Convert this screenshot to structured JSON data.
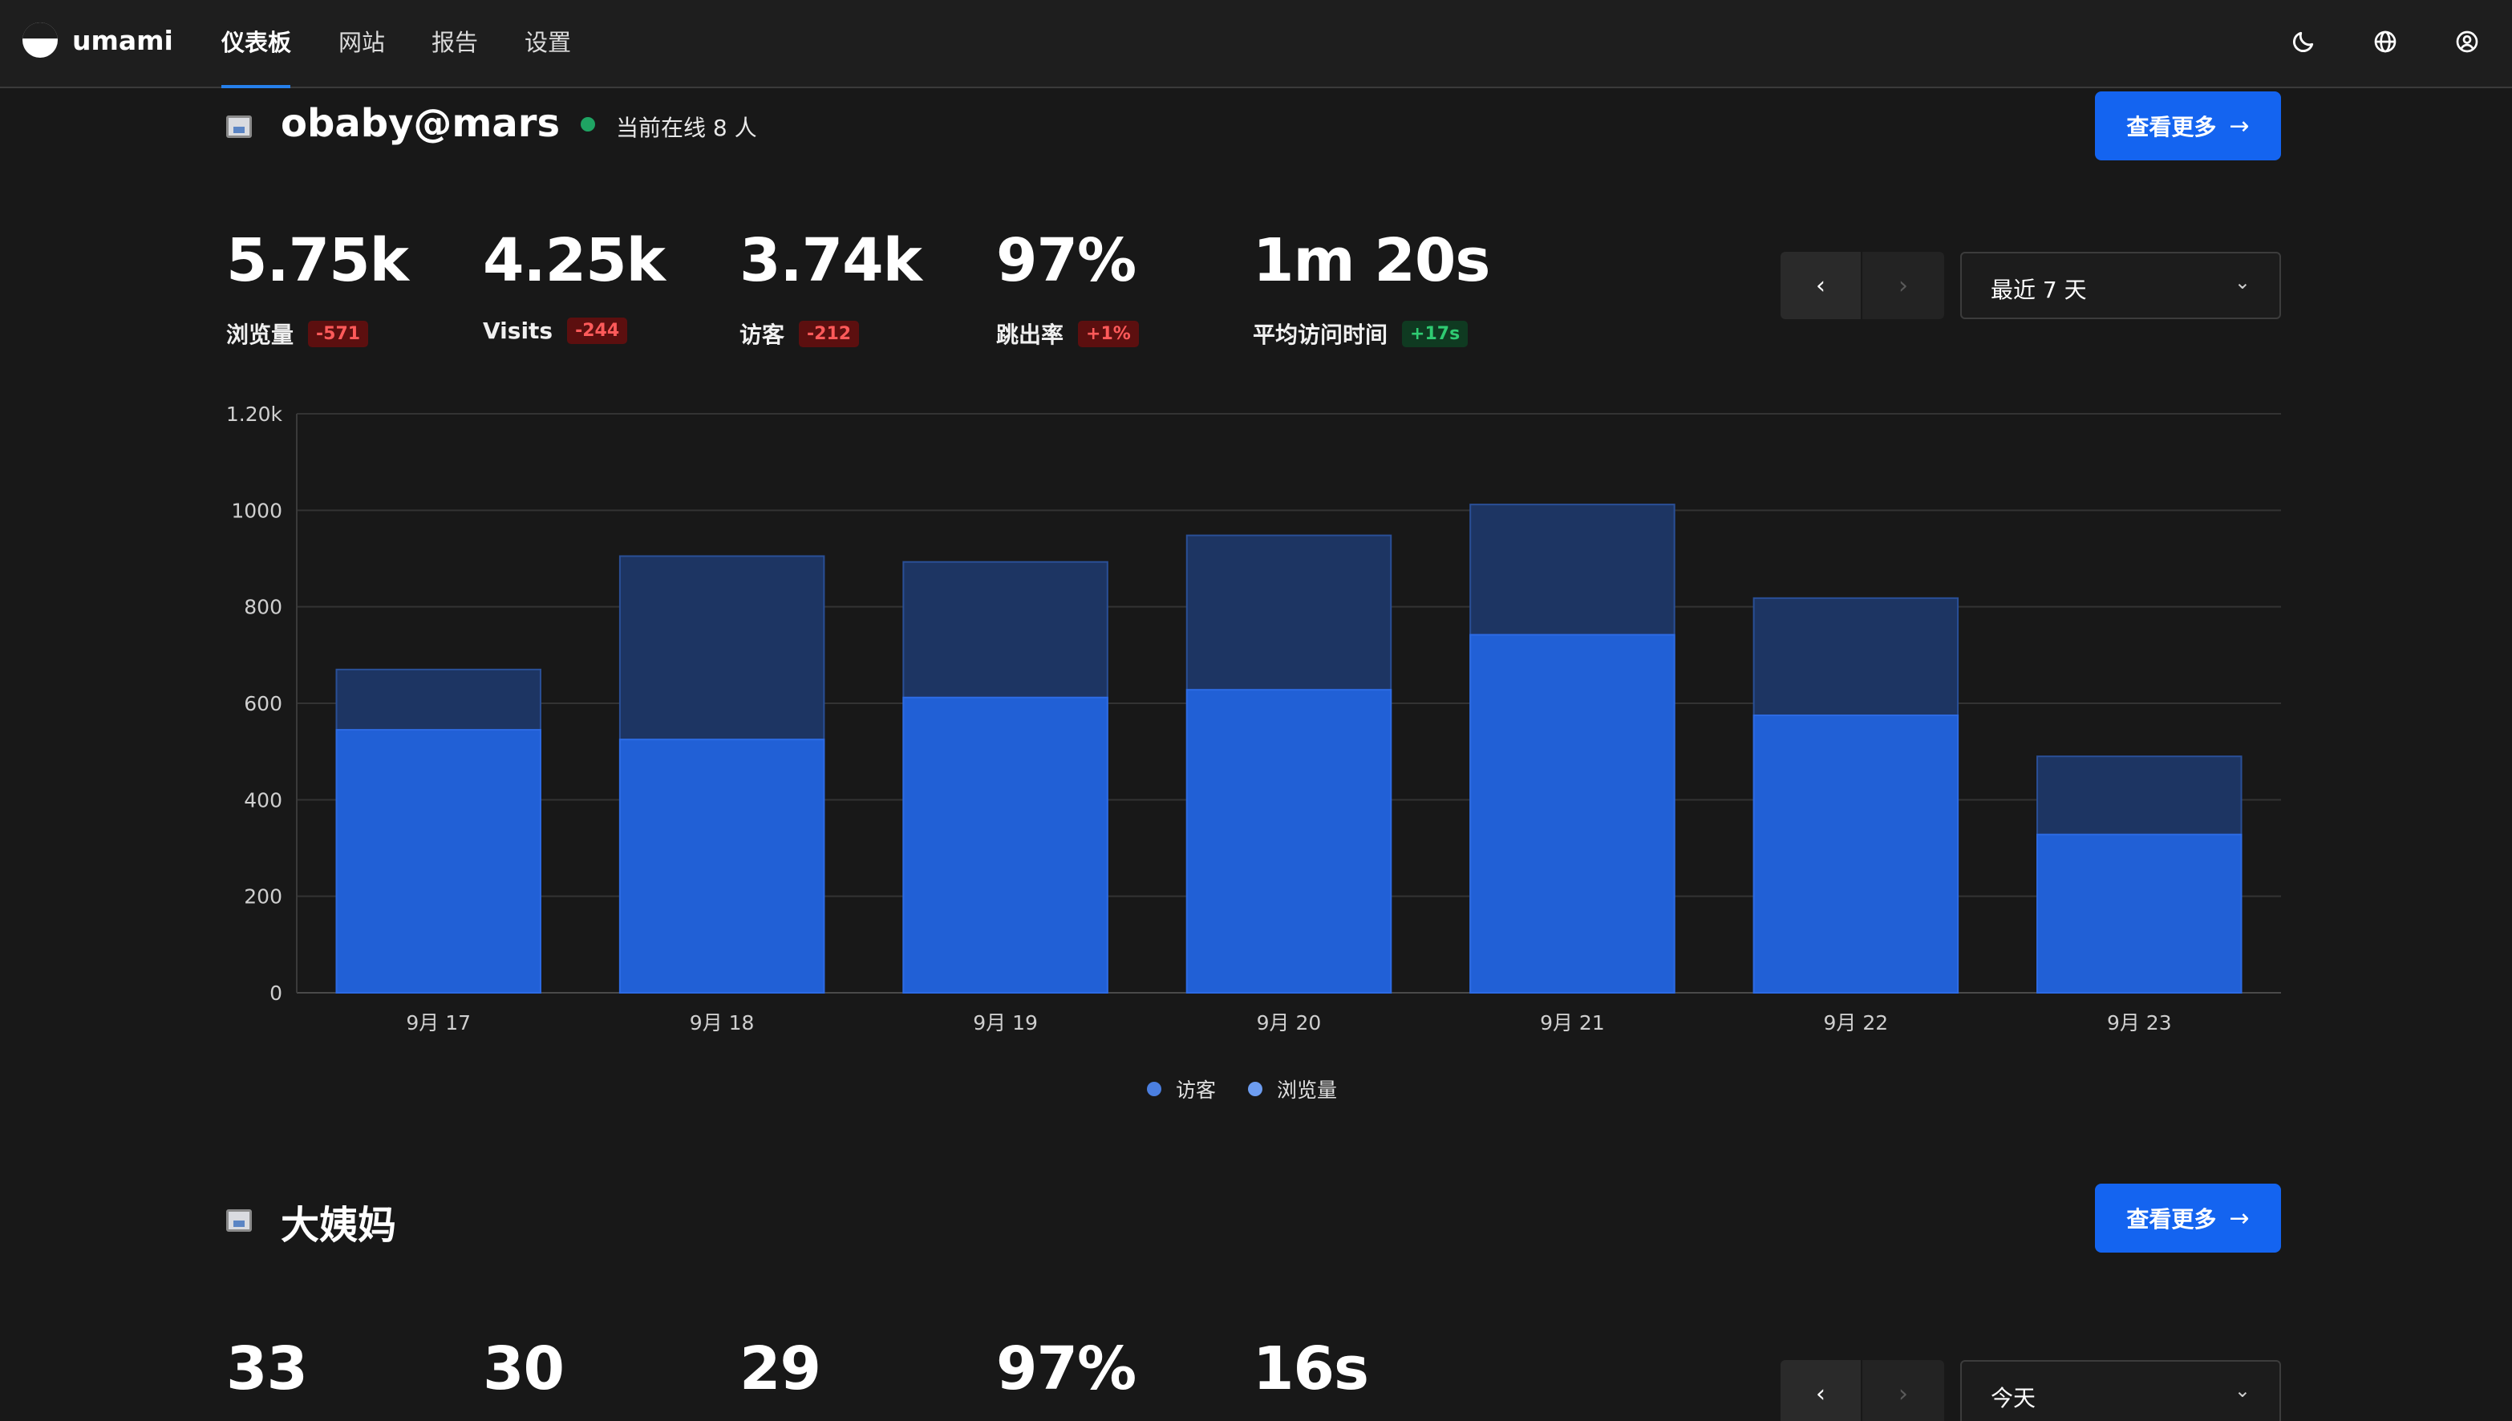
{
  "app": {
    "name": "umami",
    "nav": [
      {
        "label": "仪表板",
        "active": true
      },
      {
        "label": "网站",
        "active": false
      },
      {
        "label": "报告",
        "active": false
      },
      {
        "label": "设置",
        "active": false
      }
    ],
    "icons": [
      "moon-icon",
      "globe-icon",
      "user-icon"
    ]
  },
  "websites": [
    {
      "name": "obaby@mars",
      "online_text": "当前在线 8 人",
      "more_label": "查看更多",
      "metrics": [
        {
          "value": "5.75k",
          "label": "浏览量",
          "change": "-571",
          "trend": "neg"
        },
        {
          "value": "4.25k",
          "label": "Visits",
          "change": "-244",
          "trend": "neg"
        },
        {
          "value": "3.74k",
          "label": "访客",
          "change": "-212",
          "trend": "neg"
        },
        {
          "value": "97%",
          "label": "跳出率",
          "change": "+1%",
          "trend": "neg"
        },
        {
          "value": "1m 20s",
          "label": "平均访问时间",
          "change": "+17s",
          "trend": "pos"
        }
      ],
      "date_range": "最近 7 天",
      "pager_prev": "‹",
      "pager_next": "›"
    },
    {
      "name": "大姨妈",
      "more_label": "查看更多",
      "metrics": [
        {
          "value": "33"
        },
        {
          "value": "30"
        },
        {
          "value": "29"
        },
        {
          "value": "97%"
        },
        {
          "value": "16s"
        }
      ],
      "date_range": "今天",
      "pager_prev": "‹",
      "pager_next": "›"
    }
  ],
  "chart_data": {
    "type": "bar",
    "stacked_overlay": true,
    "categories": [
      "9月 17",
      "9月 18",
      "9月 19",
      "9月 20",
      "9月 21",
      "9月 22",
      "9月 23"
    ],
    "series": [
      {
        "name": "访客",
        "values": [
          545,
          525,
          612,
          628,
          742,
          575,
          328
        ],
        "color": "#2160d6"
      },
      {
        "name": "浏览量",
        "values": [
          670,
          905,
          893,
          948,
          1012,
          818,
          490
        ],
        "color": "#1d3563"
      }
    ],
    "y_ticks": [
      "0",
      "200",
      "400",
      "600",
      "800",
      "1000",
      "1.20k"
    ],
    "ylim": [
      0,
      1200
    ],
    "grid": true,
    "legend_position": "bottom-center",
    "legend_colors": [
      "#4b7fe0",
      "#6d9df0"
    ]
  }
}
